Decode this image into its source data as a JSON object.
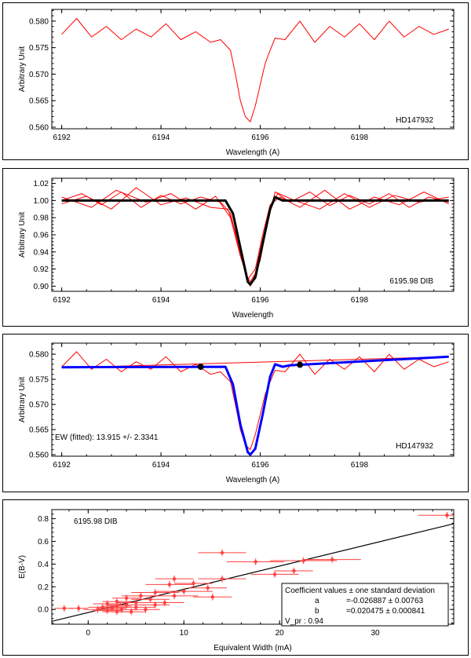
{
  "chart_data": [
    {
      "type": "line",
      "panel": "p1",
      "xlabel": "Wavelength (A)",
      "ylabel": "Arbitrary Unit",
      "annotation": "HD147932",
      "xlim": [
        6191.8,
        6199.9
      ],
      "ylim": [
        0.5597,
        0.5822
      ],
      "xticks": [
        6192,
        6194,
        6196,
        6198
      ],
      "yticks": [
        0.56,
        0.565,
        0.57,
        0.575,
        0.58
      ],
      "ytick_labels": [
        "0.560",
        "0.565",
        "0.570",
        "0.575",
        "0.580"
      ],
      "series": [
        {
          "name": "spectrum",
          "color": "#ff0000",
          "x": [
            6192.0,
            6192.3,
            6192.6,
            6192.9,
            6193.2,
            6193.5,
            6193.8,
            6194.1,
            6194.4,
            6194.7,
            6195.0,
            6195.2,
            6195.4,
            6195.5,
            6195.6,
            6195.7,
            6195.8,
            6195.9,
            6196.0,
            6196.1,
            6196.2,
            6196.3,
            6196.5,
            6196.8,
            6197.1,
            6197.4,
            6197.7,
            6198.0,
            6198.3,
            6198.6,
            6198.9,
            6199.2,
            6199.5,
            6199.8
          ],
          "y": [
            0.5775,
            0.5805,
            0.577,
            0.579,
            0.5765,
            0.5785,
            0.577,
            0.5795,
            0.5765,
            0.578,
            0.576,
            0.5765,
            0.5745,
            0.57,
            0.565,
            0.562,
            0.561,
            0.564,
            0.568,
            0.572,
            0.5745,
            0.5768,
            0.5765,
            0.58,
            0.576,
            0.579,
            0.577,
            0.5795,
            0.5765,
            0.58,
            0.577,
            0.579,
            0.5775,
            0.5785
          ]
        }
      ]
    },
    {
      "type": "line",
      "panel": "p2",
      "xlabel": "Wavelength",
      "ylabel": "Arbitrary Unit",
      "annotation": "6195.98 DIB",
      "xlim": [
        6191.8,
        6199.9
      ],
      "ylim": [
        0.894,
        1.026
      ],
      "xticks": [
        6192,
        6194,
        6196,
        6198
      ],
      "yticks": [
        0.9,
        0.92,
        0.94,
        0.96,
        0.98,
        1.0,
        1.02
      ],
      "ytick_labels": [
        "0.90",
        "0.92",
        "0.94",
        "0.96",
        "0.98",
        "1.00",
        "1.02"
      ],
      "series": [
        {
          "name": "spectrum 1",
          "color": "#ff0000",
          "x": [
            6192.0,
            6192.4,
            6192.8,
            6193.2,
            6193.6,
            6194.0,
            6194.4,
            6194.8,
            6195.2,
            6195.4,
            6195.55,
            6195.7,
            6195.8,
            6195.9,
            6196.05,
            6196.2,
            6196.35,
            6196.6,
            6197.0,
            6197.4,
            6197.8,
            6198.2,
            6198.6,
            6199.0,
            6199.4,
            6199.8
          ],
          "y": [
            1.0,
            1.008,
            0.995,
            1.01,
            0.992,
            1.006,
            0.996,
            1.004,
            0.998,
            0.985,
            0.95,
            0.915,
            0.905,
            0.915,
            0.955,
            0.99,
            1.008,
            0.998,
            1.01,
            0.994,
            1.006,
            0.996,
            1.008,
            0.992,
            1.004,
            0.998
          ]
        },
        {
          "name": "spectrum 2",
          "color": "#ff0000",
          "x": [
            6192.0,
            6192.5,
            6193.0,
            6193.5,
            6194.0,
            6194.5,
            6195.0,
            6195.35,
            6195.55,
            6195.75,
            6195.9,
            6196.05,
            6196.2,
            6196.4,
            6196.8,
            6197.3,
            6197.8,
            6198.3,
            6198.8,
            6199.3,
            6199.8
          ],
          "y": [
            0.996,
            1.005,
            0.99,
            1.015,
            0.995,
            1.003,
            0.992,
            0.99,
            0.955,
            0.908,
            0.92,
            0.96,
            0.995,
            1.004,
            0.992,
            1.012,
            0.99,
            1.004,
            0.995,
            1.01,
            0.996
          ]
        },
        {
          "name": "spectrum 3",
          "color": "#ff0000",
          "x": [
            6192.0,
            6192.6,
            6193.1,
            6193.7,
            6194.2,
            6194.7,
            6195.1,
            6195.4,
            6195.6,
            6195.8,
            6196.0,
            6196.15,
            6196.3,
            6196.7,
            6197.2,
            6197.7,
            6198.2,
            6198.7,
            6199.2,
            6199.8
          ],
          "y": [
            1.004,
            0.992,
            1.012,
            0.998,
            1.008,
            0.99,
            1.005,
            0.98,
            0.935,
            0.9,
            0.93,
            0.975,
            1.01,
            1.0,
            0.99,
            1.008,
            0.992,
            1.006,
            0.998,
            1.004
          ]
        },
        {
          "name": "fit",
          "color": "#000000",
          "width": 3,
          "x": [
            6192.0,
            6195.3,
            6195.45,
            6195.6,
            6195.75,
            6195.8,
            6195.9,
            6196.05,
            6196.2,
            6196.3,
            6196.45,
            6199.8
          ],
          "y": [
            1.0,
            1.0,
            0.985,
            0.945,
            0.905,
            0.902,
            0.91,
            0.95,
            0.99,
            1.004,
            1.0,
            1.0
          ]
        }
      ]
    },
    {
      "type": "line",
      "panel": "p3",
      "xlabel": "Wavelength (A)",
      "ylabel": "Arbitrary Unit",
      "annotation": "HD147932",
      "annotation2": "EW (fitted): 13.915  +/- 2.3341",
      "xlim": [
        6191.8,
        6199.9
      ],
      "ylim": [
        0.5597,
        0.5822
      ],
      "xticks": [
        6192,
        6194,
        6196,
        6198
      ],
      "yticks": [
        0.56,
        0.565,
        0.57,
        0.575,
        0.58
      ],
      "ytick_labels": [
        "0.560",
        "0.565",
        "0.570",
        "0.575",
        "0.580"
      ],
      "series": [
        {
          "name": "spectrum",
          "color": "#ff0000",
          "x": [
            6192.0,
            6192.3,
            6192.6,
            6192.9,
            6193.2,
            6193.5,
            6193.8,
            6194.1,
            6194.4,
            6194.7,
            6195.0,
            6195.2,
            6195.4,
            6195.5,
            6195.6,
            6195.7,
            6195.8,
            6195.9,
            6196.0,
            6196.1,
            6196.2,
            6196.3,
            6196.5,
            6196.8,
            6197.1,
            6197.4,
            6197.7,
            6198.0,
            6198.3,
            6198.6,
            6198.9,
            6199.2,
            6199.5,
            6199.8
          ],
          "y": [
            0.5775,
            0.5805,
            0.577,
            0.579,
            0.5765,
            0.5785,
            0.577,
            0.5795,
            0.5765,
            0.578,
            0.576,
            0.5765,
            0.5745,
            0.57,
            0.565,
            0.562,
            0.561,
            0.564,
            0.568,
            0.572,
            0.5745,
            0.5768,
            0.5765,
            0.58,
            0.576,
            0.579,
            0.577,
            0.5795,
            0.5765,
            0.58,
            0.577,
            0.579,
            0.5775,
            0.5785
          ]
        },
        {
          "name": "continuum",
          "color": "#ff0000",
          "x": [
            6192.0,
            6199.8
          ],
          "y": [
            0.5773,
            0.5795
          ]
        },
        {
          "name": "fit",
          "color": "#0000ff",
          "width": 3,
          "x": [
            6192.0,
            6195.3,
            6195.45,
            6195.6,
            6195.75,
            6195.8,
            6195.9,
            6196.05,
            6196.2,
            6196.3,
            6196.45,
            6196.6,
            6199.8
          ],
          "y": [
            0.5774,
            0.5775,
            0.574,
            0.566,
            0.5605,
            0.56,
            0.5612,
            0.568,
            0.5755,
            0.578,
            0.5775,
            0.5778,
            0.5795
          ]
        },
        {
          "name": "anchor points",
          "color": "#000000",
          "type": "scatter",
          "x": [
            6194.8,
            6196.8
          ],
          "y": [
            0.5775,
            0.5779
          ]
        }
      ]
    },
    {
      "type": "scatter",
      "panel": "p4",
      "xlabel": "Equivalent Width (mA)",
      "ylabel": "E(B-V)",
      "annotation": "6195.98 DIB",
      "xlim": [
        -3.8,
        38.2
      ],
      "ylim": [
        -0.13,
        0.88
      ],
      "xticks": [
        0,
        10,
        20,
        30
      ],
      "yticks": [
        0.0,
        0.2,
        0.4,
        0.6,
        0.8
      ],
      "ytick_labels": [
        "0.0",
        "0.2",
        "0.4",
        "0.6",
        "0.8"
      ],
      "legend": {
        "title": "Coefficient values ± one standard deviation",
        "rows": [
          {
            "name": "a",
            "value": "=-0.026887 ± 0.00763"
          },
          {
            "name": "b",
            "value": "=0.020475 ± 0.000841"
          },
          {
            "name": "V_pr",
            "value": "V_pr : 0.94"
          }
        ]
      },
      "fit_line": {
        "a": -0.026887,
        "b": 0.020475
      },
      "points": [
        {
          "x": 37.5,
          "y": 0.83,
          "xerr": 3.0,
          "yerr": 0.03
        },
        {
          "x": 14.0,
          "y": 0.5,
          "xerr": 2.5,
          "yerr": 0.03
        },
        {
          "x": 17.5,
          "y": 0.42,
          "xerr": 3.0,
          "yerr": 0.03
        },
        {
          "x": 22.5,
          "y": 0.43,
          "xerr": 3.5,
          "yerr": 0.03
        },
        {
          "x": 25.5,
          "y": 0.44,
          "xerr": 3.0,
          "yerr": 0.03
        },
        {
          "x": 19.5,
          "y": 0.31,
          "xerr": 2.5,
          "yerr": 0.03
        },
        {
          "x": 21.5,
          "y": 0.34,
          "xerr": 2.0,
          "yerr": 0.03
        },
        {
          "x": 14.0,
          "y": 0.27,
          "xerr": 2.5,
          "yerr": 0.03
        },
        {
          "x": 9.0,
          "y": 0.27,
          "xerr": 2.0,
          "yerr": 0.03
        },
        {
          "x": 11.0,
          "y": 0.23,
          "xerr": 2.0,
          "yerr": 0.03
        },
        {
          "x": 8.5,
          "y": 0.22,
          "xerr": 2.5,
          "yerr": 0.03
        },
        {
          "x": 12.5,
          "y": 0.19,
          "xerr": 2.0,
          "yerr": 0.03
        },
        {
          "x": 10.0,
          "y": 0.16,
          "xerr": 3.0,
          "yerr": 0.03
        },
        {
          "x": 7.0,
          "y": 0.15,
          "xerr": 2.5,
          "yerr": 0.03
        },
        {
          "x": 5.5,
          "y": 0.12,
          "xerr": 2.0,
          "yerr": 0.03
        },
        {
          "x": 9.0,
          "y": 0.12,
          "xerr": 2.5,
          "yerr": 0.03
        },
        {
          "x": 13.0,
          "y": 0.11,
          "xerr": 2.0,
          "yerr": 0.03
        },
        {
          "x": 4.0,
          "y": 0.1,
          "xerr": 1.5,
          "yerr": 0.03
        },
        {
          "x": 6.5,
          "y": 0.09,
          "xerr": 2.0,
          "yerr": 0.03
        },
        {
          "x": 3.0,
          "y": 0.07,
          "xerr": 1.5,
          "yerr": 0.03
        },
        {
          "x": 5.0,
          "y": 0.06,
          "xerr": 2.0,
          "yerr": 0.03
        },
        {
          "x": 8.0,
          "y": 0.06,
          "xerr": 2.0,
          "yerr": 0.03
        },
        {
          "x": 2.0,
          "y": 0.05,
          "xerr": 1.5,
          "yerr": 0.03
        },
        {
          "x": 4.0,
          "y": 0.04,
          "xerr": 2.0,
          "yerr": 0.03
        },
        {
          "x": 7.0,
          "y": 0.04,
          "xerr": 1.5,
          "yerr": 0.03
        },
        {
          "x": 3.0,
          "y": 0.03,
          "xerr": 1.5,
          "yerr": 0.03
        },
        {
          "x": 1.5,
          "y": 0.02,
          "xerr": 1.5,
          "yerr": 0.03
        },
        {
          "x": 5.0,
          "y": 0.02,
          "xerr": 2.0,
          "yerr": 0.03
        },
        {
          "x": 2.5,
          "y": 0.01,
          "xerr": 1.5,
          "yerr": 0.03
        },
        {
          "x": 1.0,
          "y": 0.0,
          "xerr": 1.5,
          "yerr": 0.03
        },
        {
          "x": 3.5,
          "y": 0.0,
          "xerr": 1.5,
          "yerr": 0.03
        },
        {
          "x": 6.0,
          "y": 0.0,
          "xerr": 1.5,
          "yerr": 0.03
        },
        {
          "x": -2.5,
          "y": 0.01,
          "xerr": 1.0,
          "yerr": 0.03
        },
        {
          "x": -1.0,
          "y": 0.01,
          "xerr": 1.0,
          "yerr": 0.03
        },
        {
          "x": 2.0,
          "y": -0.01,
          "xerr": 1.5,
          "yerr": 0.03
        },
        {
          "x": 4.5,
          "y": -0.02,
          "xerr": 1.5,
          "yerr": 0.03
        },
        {
          "x": 3.0,
          "y": -0.02,
          "xerr": 1.5,
          "yerr": 0.03
        }
      ]
    }
  ]
}
